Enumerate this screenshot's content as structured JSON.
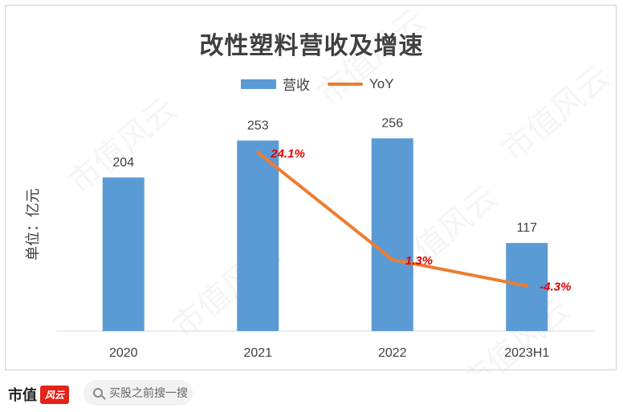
{
  "chart_data": {
    "type": "bar",
    "title": "改性塑料营收及增速",
    "categories": [
      "2020",
      "2021",
      "2022",
      "2023H1"
    ],
    "series": [
      {
        "name": "营收",
        "type": "bar",
        "values": [
          204,
          253,
          256,
          117
        ],
        "color": "#5b9bd5"
      },
      {
        "name": "YoY",
        "type": "line",
        "values": [
          null,
          24.1,
          1.3,
          -4.3
        ],
        "labels": [
          "",
          "24.1%",
          "1.3%",
          "-4.3%"
        ],
        "color": "#ed7d31"
      }
    ],
    "ylabel": "单位：亿元",
    "ylim": [
      0,
      280
    ],
    "grid": false,
    "legend_position": "top"
  },
  "watermark_text": "市值风云",
  "footer": {
    "brand": "市值",
    "brand_logo": "风云",
    "search_placeholder": "买股之前搜一搜"
  }
}
